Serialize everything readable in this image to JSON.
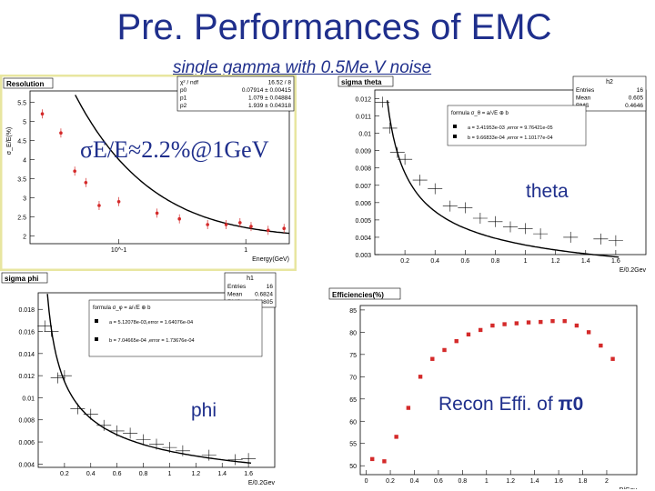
{
  "page": {
    "title": "Pre. Performances of EMC",
    "subtitle": "single gamma with 0.5Me.V noise",
    "resolution_label": "σE/E≈2.2%@1GeV",
    "theta_label": "theta",
    "phi_label": "phi",
    "effi_label_text": "Recon Effi. of ",
    "effi_label_particle": "π0"
  },
  "colors": {
    "text": "#1f2f8c",
    "marker": "#d42a2a",
    "curve": "#000000",
    "panel_frame": "#e8e6a0"
  },
  "chart_data": [
    {
      "id": "resolution",
      "type": "scatter",
      "title": "Resolution",
      "ylabel": "σ_E/E(%)",
      "xlabel": "Energy(GeV)",
      "xscale": "log",
      "xlim": [
        0.02,
        2.2
      ],
      "ylim": [
        1.8,
        5.8
      ],
      "yticks": [
        "2",
        "2.5",
        "3",
        "3.5",
        "4",
        "4.5",
        "5",
        "5.5"
      ],
      "yticks_values": [
        2,
        2.5,
        3,
        3.5,
        4,
        4.5,
        5,
        5.5
      ],
      "xticks": [
        "10^-1",
        "1"
      ],
      "xticks_values": [
        0.1,
        1
      ],
      "stats_box": [
        [
          "χ² / ndf",
          "16.52 / 8"
        ],
        [
          "p0",
          "0.07914 ± 0.00415"
        ],
        [
          "p1",
          "1.079 ± 0.04884"
        ],
        [
          "p2",
          "1.939 ± 0.04318"
        ]
      ],
      "x": [
        0.025,
        0.035,
        0.045,
        0.055,
        0.07,
        0.1,
        0.2,
        0.3,
        0.5,
        0.7,
        0.9,
        1.1,
        1.5,
        2.0
      ],
      "y": [
        5.2,
        4.7,
        3.7,
        3.4,
        2.8,
        2.9,
        2.6,
        2.45,
        2.3,
        2.3,
        2.35,
        2.25,
        2.15,
        2.2
      ],
      "fit": {
        "p0": 0.07914,
        "p1": 1.079,
        "p2": 1.939
      }
    },
    {
      "id": "sigma_theta",
      "type": "scatter",
      "title": "sigma theta",
      "xlabel": "E/0.2Gev",
      "xlim": [
        0,
        1.8
      ],
      "ylim": [
        0.003,
        0.0125
      ],
      "yticks": [
        "0.003",
        "0.004",
        "0.005",
        "0.006",
        "0.007",
        "0.008",
        "0.009",
        "0.01",
        "0.011",
        "0.012"
      ],
      "yticks_values": [
        0.003,
        0.004,
        0.005,
        0.006,
        0.007,
        0.008,
        0.009,
        0.01,
        0.011,
        0.012
      ],
      "xticks": [
        "0.2",
        "0.4",
        "0.6",
        "0.8",
        "1",
        "1.2",
        "1.4",
        "1.6"
      ],
      "xticks_values": [
        0.2,
        0.4,
        0.6,
        0.8,
        1,
        1.2,
        1.4,
        1.6
      ],
      "stats_name": "h2",
      "stats_box": [
        [
          "Entries",
          "16"
        ],
        [
          "Mean",
          "0.605"
        ],
        [
          "RMS",
          "0.4646"
        ]
      ],
      "formula": "formula σ_θ = a/√E ⊕ b",
      "legend": [
        "a = 3.41953e-03 ,error = 9.76421e-05",
        "b = 9.66833e-04 ,error = 1.10177e-04"
      ],
      "x": [
        0.05,
        0.1,
        0.15,
        0.2,
        0.3,
        0.4,
        0.5,
        0.6,
        0.7,
        0.8,
        0.9,
        1.0,
        1.1,
        1.3,
        1.5,
        1.6
      ],
      "y": [
        0.0118,
        0.0103,
        0.0089,
        0.0085,
        0.0073,
        0.0068,
        0.0058,
        0.0057,
        0.0051,
        0.0049,
        0.0046,
        0.0045,
        0.0042,
        0.004,
        0.0039,
        0.0038
      ],
      "fit": {
        "a": 0.00341953,
        "b": 0.000966833
      }
    },
    {
      "id": "sigma_phi",
      "type": "scatter",
      "title": "sigma phi",
      "xlabel": "E/0.2Gev",
      "xlim": [
        0,
        1.8
      ],
      "ylim": [
        0.0037,
        0.0195
      ],
      "yticks": [
        "0.004",
        "0.006",
        "0.008",
        "0.01",
        "0.012",
        "0.014",
        "0.016",
        "0.018"
      ],
      "yticks_values": [
        0.004,
        0.006,
        0.008,
        0.01,
        0.012,
        0.014,
        0.016,
        0.018
      ],
      "xticks": [
        "0.2",
        "0.4",
        "0.6",
        "0.8",
        "1",
        "1.2",
        "1.4",
        "1.6"
      ],
      "xticks_values": [
        0.2,
        0.4,
        0.6,
        0.8,
        1,
        1.2,
        1.4,
        1.6
      ],
      "stats_name": "h1",
      "stats_box": [
        [
          "Entries",
          "16"
        ],
        [
          "Mean",
          "0.6824"
        ],
        [
          "RMS",
          "0.4805"
        ]
      ],
      "formula": "formula σ_φ = a/√E ⊕ b",
      "legend": [
        "a = 5.12078e-03,error = 1.64076e-04",
        "b = 7.04665e-04 ,error = 1.73676e-04"
      ],
      "x": [
        0.05,
        0.1,
        0.15,
        0.2,
        0.3,
        0.4,
        0.5,
        0.6,
        0.7,
        0.8,
        0.9,
        1.0,
        1.1,
        1.3,
        1.5,
        1.6
      ],
      "y": [
        0.0165,
        0.016,
        0.0118,
        0.012,
        0.009,
        0.0085,
        0.0075,
        0.007,
        0.0068,
        0.0062,
        0.0058,
        0.0055,
        0.0052,
        0.0048,
        0.0044,
        0.0045
      ],
      "fit": {
        "a": 0.00512078,
        "b": 0.000704665
      }
    },
    {
      "id": "efficiencies",
      "type": "scatter",
      "title": "Efficiencies(%)",
      "xlabel": "P/Gev",
      "xlim": [
        -0.05,
        2.25
      ],
      "ylim": [
        48,
        86
      ],
      "yticks": [
        "50",
        "55",
        "60",
        "65",
        "70",
        "75",
        "80",
        "85"
      ],
      "yticks_values": [
        50,
        55,
        60,
        65,
        70,
        75,
        80,
        85
      ],
      "xticks": [
        "0",
        "0.2",
        "0.4",
        "0.6",
        "0.8",
        "1",
        "1.2",
        "1.4",
        "1.6",
        "1.8",
        "2"
      ],
      "xticks_values": [
        0,
        0.2,
        0.4,
        0.6,
        0.8,
        1,
        1.2,
        1.4,
        1.6,
        1.8,
        2
      ],
      "x": [
        0.05,
        0.15,
        0.25,
        0.35,
        0.45,
        0.55,
        0.65,
        0.75,
        0.85,
        0.95,
        1.05,
        1.15,
        1.25,
        1.35,
        1.45,
        1.55,
        1.65,
        1.75,
        1.85,
        1.95,
        2.05
      ],
      "y": [
        51.5,
        51,
        56.5,
        63,
        70,
        74,
        76,
        78,
        79.5,
        80.5,
        81.5,
        81.8,
        82,
        82.2,
        82.3,
        82.5,
        82.5,
        81.5,
        80,
        77,
        74
      ]
    }
  ]
}
